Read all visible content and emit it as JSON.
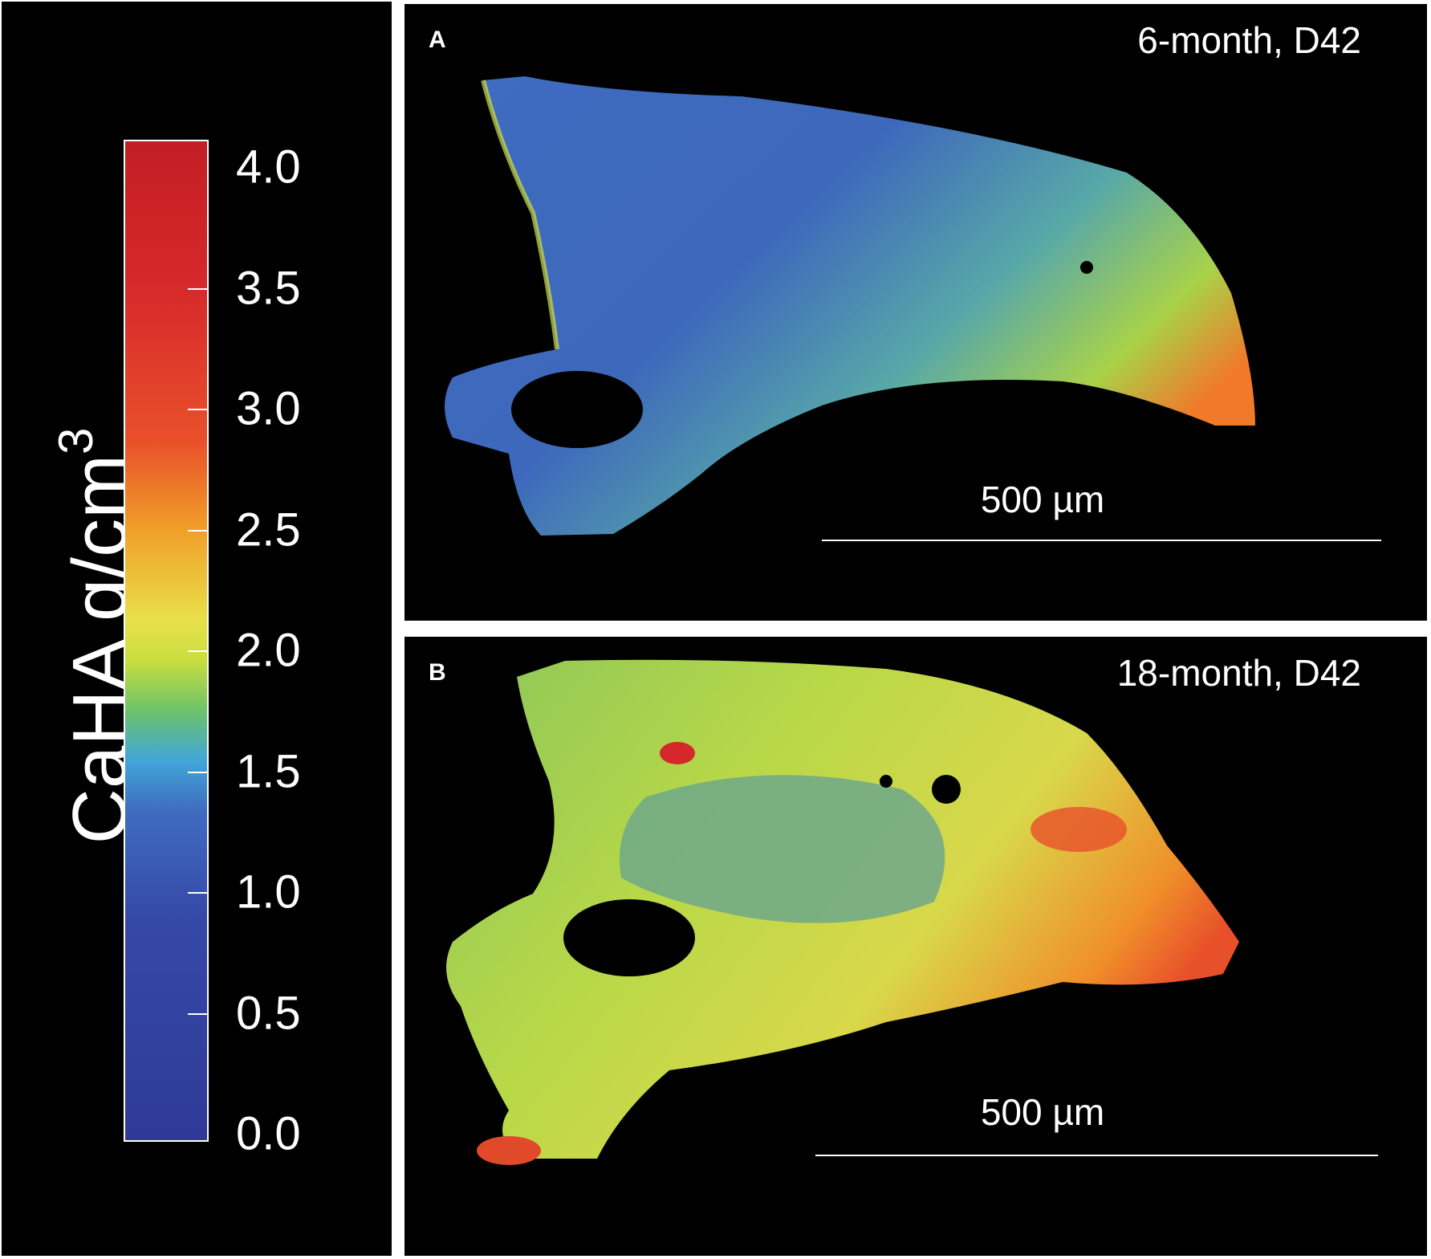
{
  "legend": {
    "title": "CaHA g/cm",
    "title_superscript": "3",
    "ticks": [
      "4.0",
      "3.5",
      "3.0",
      "2.5",
      "2.0",
      "1.5",
      "1.0",
      "0.5",
      "0.0"
    ],
    "range": [
      0.0,
      4.0
    ]
  },
  "panels": [
    {
      "letter": "A",
      "caption": "6-month, D42",
      "scale_label": "500 µm"
    },
    {
      "letter": "B",
      "caption": "18-month, D42",
      "scale_label": "500 µm"
    }
  ],
  "colors": {
    "background": "#000000",
    "low": "#2f3a96",
    "mid": "#e8e04a",
    "high": "#d6282a"
  }
}
